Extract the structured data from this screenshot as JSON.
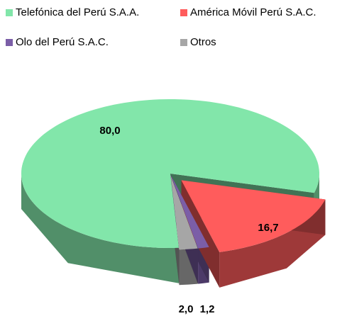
{
  "chart_data": {
    "type": "pie",
    "categories": [
      "Telefónica del Perú S.A.A.",
      "América Móvil Perú S.A.C.",
      "Olo del Perú S.A.C.",
      "Otros"
    ],
    "values": [
      80.0,
      16.7,
      1.2,
      2.0
    ],
    "value_labels": [
      "80,0",
      "16,7",
      "1,2",
      "2,0"
    ],
    "colors": [
      "#82e6aa",
      "#ff5c5c",
      "#7b5ea7",
      "#a6a6a6"
    ],
    "legend": "top"
  }
}
